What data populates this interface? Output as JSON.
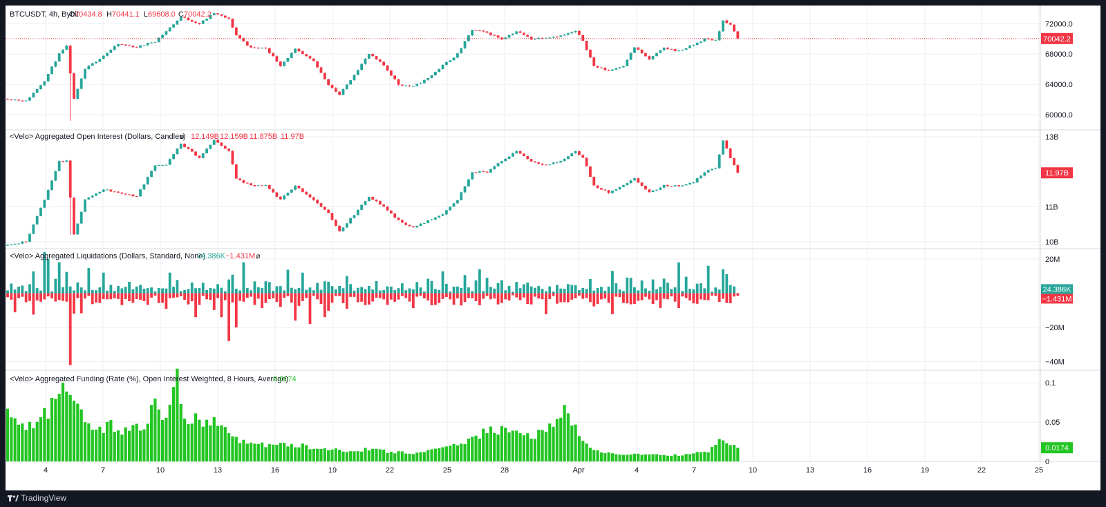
{
  "colors": {
    "up": "#26a69a",
    "down": "#f23645",
    "funding": "#22c522",
    "grid": "#eceef2",
    "text": "#131722",
    "axis_text": "#131722"
  },
  "footer": {
    "brand": "TradingView"
  },
  "chart_data": [
    {
      "type": "candlestick",
      "pane": "price",
      "symbol": "BTCUSDT, 4h, Bybit",
      "ohlc_labels": {
        "open": "70434.8",
        "high": "70441.1",
        "low": "69608.0",
        "close": "70042.2"
      },
      "y_ticks": [
        "72000.0",
        "68000.0",
        "64000.0",
        "60000.0"
      ],
      "ylim": [
        58000,
        74400
      ],
      "last_price_label": "70042.2",
      "anchors": [
        [
          0,
          62100
        ],
        [
          5,
          61800
        ],
        [
          10,
          64500
        ],
        [
          14,
          68000
        ],
        [
          16,
          69000
        ],
        [
          18,
          62000
        ],
        [
          21,
          66000
        ],
        [
          26,
          67800
        ],
        [
          30,
          69300
        ],
        [
          35,
          68900
        ],
        [
          40,
          69700
        ],
        [
          43,
          71000
        ],
        [
          47,
          72900
        ],
        [
          52,
          72000
        ],
        [
          56,
          73400
        ],
        [
          60,
          72600
        ],
        [
          62,
          70500
        ],
        [
          66,
          68800
        ],
        [
          70,
          68800
        ],
        [
          74,
          66500
        ],
        [
          78,
          68600
        ],
        [
          83,
          67000
        ],
        [
          87,
          64000
        ],
        [
          90,
          62600
        ],
        [
          95,
          66000
        ],
        [
          98,
          68000
        ],
        [
          102,
          66500
        ],
        [
          106,
          64000
        ],
        [
          110,
          63700
        ],
        [
          114,
          64800
        ],
        [
          118,
          66500
        ],
        [
          122,
          68000
        ],
        [
          126,
          71200
        ],
        [
          130,
          70800
        ],
        [
          134,
          70000
        ],
        [
          138,
          71000
        ],
        [
          142,
          70000
        ],
        [
          146,
          70200
        ],
        [
          150,
          70400
        ],
        [
          154,
          71000
        ],
        [
          156,
          69800
        ],
        [
          159,
          66400
        ],
        [
          163,
          65800
        ],
        [
          167,
          66500
        ],
        [
          170,
          68900
        ],
        [
          174,
          67300
        ],
        [
          178,
          68800
        ],
        [
          182,
          68400
        ],
        [
          186,
          69200
        ],
        [
          189,
          70000
        ],
        [
          192,
          69800
        ],
        [
          194,
          72400
        ],
        [
          196,
          71800
        ],
        [
          198,
          70042
        ]
      ],
      "special_wicks": [
        [
          17,
          61500,
          59200
        ],
        [
          34,
          68000,
          70800
        ]
      ],
      "x_ticks": [
        "4",
        "7",
        "10",
        "13",
        "16",
        "19",
        "22",
        "25",
        "28",
        "Apr",
        "4",
        "7",
        "10",
        "13",
        "16",
        "19",
        "22",
        "25"
      ]
    },
    {
      "type": "candlestick",
      "pane": "open_interest",
      "title": "<Velo> Aggregated Open Interest (Dollars, Candles)",
      "legend_values": [
        "12.149B",
        "12.159B",
        "11.875B",
        "11.97B"
      ],
      "y_ticks": [
        "13B",
        "11B",
        "10B"
      ],
      "ylim": [
        9.8,
        13.2
      ],
      "last_value_label": "11.97B",
      "anchors": [
        [
          0,
          9.9
        ],
        [
          5,
          10.0
        ],
        [
          10,
          11.2
        ],
        [
          14,
          12.3
        ],
        [
          16,
          12.3
        ],
        [
          18,
          10.2
        ],
        [
          21,
          11.2
        ],
        [
          26,
          11.5
        ],
        [
          30,
          11.4
        ],
        [
          35,
          11.3
        ],
        [
          40,
          12.2
        ],
        [
          43,
          12.2
        ],
        [
          47,
          12.8
        ],
        [
          52,
          12.4
        ],
        [
          56,
          12.9
        ],
        [
          60,
          12.6
        ],
        [
          62,
          11.8
        ],
        [
          66,
          11.6
        ],
        [
          70,
          11.6
        ],
        [
          74,
          11.2
        ],
        [
          78,
          11.6
        ],
        [
          83,
          11.2
        ],
        [
          87,
          10.8
        ],
        [
          90,
          10.3
        ],
        [
          95,
          10.9
        ],
        [
          98,
          11.3
        ],
        [
          102,
          11.0
        ],
        [
          106,
          10.6
        ],
        [
          110,
          10.4
        ],
        [
          114,
          10.6
        ],
        [
          118,
          10.8
        ],
        [
          122,
          11.2
        ],
        [
          126,
          12.0
        ],
        [
          130,
          12.0
        ],
        [
          134,
          12.3
        ],
        [
          138,
          12.6
        ],
        [
          142,
          12.3
        ],
        [
          146,
          12.2
        ],
        [
          150,
          12.3
        ],
        [
          154,
          12.6
        ],
        [
          156,
          12.4
        ],
        [
          159,
          11.6
        ],
        [
          163,
          11.4
        ],
        [
          167,
          11.6
        ],
        [
          170,
          11.8
        ],
        [
          174,
          11.4
        ],
        [
          178,
          11.6
        ],
        [
          182,
          11.6
        ],
        [
          186,
          11.7
        ],
        [
          189,
          12.0
        ],
        [
          192,
          12.1
        ],
        [
          194,
          12.9
        ],
        [
          196,
          12.4
        ],
        [
          198,
          11.97
        ]
      ],
      "special_wicks": [
        [
          17,
          11.0,
          10.2
        ]
      ]
    },
    {
      "type": "bar",
      "pane": "liquidations",
      "title": "<Velo> Aggregated Liquidations (Dollars, Standard, None)",
      "legend_values": [
        "24.386K",
        "−1.431M"
      ],
      "y_ticks": [
        "20M",
        "−20M",
        "−40M"
      ],
      "ylim": [
        -45,
        26
      ],
      "last_long_label": "24.386K",
      "last_short_label": "−1.431M",
      "long_pattern": [
        2,
        6,
        3,
        8,
        5,
        2,
        10,
        14,
        4,
        3,
        18,
        6,
        2,
        9,
        4,
        5,
        13,
        7,
        3,
        8,
        5,
        2,
        16,
        4,
        3,
        6,
        10,
        3,
        5,
        2,
        7,
        3,
        8,
        12,
        5,
        4,
        9,
        6,
        3,
        7,
        2,
        6,
        4,
        3,
        8,
        5,
        11,
        2,
        4,
        6,
        9,
        3,
        5,
        7
      ],
      "short_pattern": [
        4,
        7,
        9,
        6,
        3,
        10,
        14,
        5,
        8,
        4,
        12,
        6,
        3,
        9,
        5,
        7,
        4,
        11,
        6,
        3,
        8,
        13,
        5,
        4,
        7,
        10,
        3,
        6,
        9,
        4,
        5,
        12,
        7,
        3,
        8,
        6,
        4,
        10,
        5,
        7,
        3,
        9,
        6,
        4,
        8,
        11,
        5,
        3,
        7,
        6,
        9,
        4,
        5,
        8
      ],
      "big_longs": [
        [
          10,
          24
        ],
        [
          11,
          20
        ],
        [
          14,
          18
        ],
        [
          26,
          12
        ],
        [
          44,
          12
        ],
        [
          60,
          8
        ],
        [
          80,
          12
        ],
        [
          92,
          10
        ],
        [
          128,
          14
        ],
        [
          164,
          13
        ],
        [
          182,
          18
        ],
        [
          190,
          16
        ],
        [
          194,
          14
        ]
      ],
      "big_shorts": [
        [
          17,
          -42
        ],
        [
          18,
          -12
        ],
        [
          51,
          -14
        ],
        [
          58,
          -14
        ],
        [
          60,
          -28
        ],
        [
          62,
          -20
        ],
        [
          78,
          -16
        ],
        [
          82,
          -18
        ],
        [
          86,
          -14
        ]
      ]
    },
    {
      "type": "bar",
      "pane": "funding",
      "title": "<Velo> Aggregated Funding (Rate (%), Open Interest Weighted, 8 Hours, Average)",
      "legend_value": "0.0174",
      "y_ticks": [
        "0.1",
        "0.05",
        "0"
      ],
      "ylim": [
        0,
        0.116
      ],
      "last_value_label": "0.0174",
      "anchors": [
        [
          0,
          0.062
        ],
        [
          4,
          0.045
        ],
        [
          8,
          0.05
        ],
        [
          12,
          0.07
        ],
        [
          15,
          0.095
        ],
        [
          18,
          0.07
        ],
        [
          21,
          0.05
        ],
        [
          24,
          0.042
        ],
        [
          28,
          0.045
        ],
        [
          32,
          0.04
        ],
        [
          36,
          0.042
        ],
        [
          40,
          0.07
        ],
        [
          43,
          0.052
        ],
        [
          46,
          0.095
        ],
        [
          48,
          0.06
        ],
        [
          52,
          0.05
        ],
        [
          56,
          0.048
        ],
        [
          60,
          0.038
        ],
        [
          64,
          0.025
        ],
        [
          70,
          0.02
        ],
        [
          76,
          0.022
        ],
        [
          82,
          0.018
        ],
        [
          88,
          0.016
        ],
        [
          92,
          0.014
        ],
        [
          98,
          0.015
        ],
        [
          104,
          0.012
        ],
        [
          110,
          0.011
        ],
        [
          116,
          0.014
        ],
        [
          120,
          0.018
        ],
        [
          124,
          0.026
        ],
        [
          128,
          0.035
        ],
        [
          132,
          0.04
        ],
        [
          136,
          0.038
        ],
        [
          140,
          0.032
        ],
        [
          144,
          0.035
        ],
        [
          148,
          0.045
        ],
        [
          151,
          0.07
        ],
        [
          154,
          0.04
        ],
        [
          157,
          0.02
        ],
        [
          160,
          0.012
        ],
        [
          165,
          0.01
        ],
        [
          170,
          0.009
        ],
        [
          175,
          0.008
        ],
        [
          180,
          0.008
        ],
        [
          185,
          0.009
        ],
        [
          190,
          0.012
        ],
        [
          193,
          0.028
        ],
        [
          196,
          0.02
        ],
        [
          198,
          0.0174
        ]
      ],
      "spikes": [
        [
          46,
          0.118
        ],
        [
          40,
          0.08
        ],
        [
          15,
          0.1
        ],
        [
          151,
          0.072
        ]
      ]
    }
  ]
}
